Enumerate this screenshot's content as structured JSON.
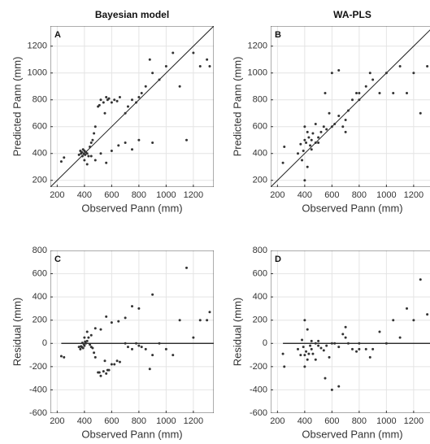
{
  "chart_data": [
    {
      "type": "scatter",
      "panel": "A",
      "title": "Bayesian model",
      "xlabel": "Observed Pann (mm)",
      "ylabel": "Predicted Pann (mm)",
      "color": "#333333",
      "xlim": [
        150,
        1350
      ],
      "xticks": [
        200,
        400,
        600,
        800,
        1000,
        1200
      ],
      "ylim": [
        150,
        1350
      ],
      "yticks": [
        200,
        400,
        600,
        800,
        1000,
        1200
      ],
      "grid": true,
      "identity_line": true,
      "x": [
        230,
        250,
        360,
        370,
        375,
        380,
        385,
        390,
        395,
        400,
        405,
        410,
        420,
        430,
        440,
        450,
        460,
        470,
        480,
        500,
        510,
        520,
        540,
        550,
        560,
        570,
        580,
        600,
        620,
        640,
        660,
        700,
        720,
        750,
        780,
        800,
        820,
        850,
        880,
        900,
        950,
        1000,
        1050,
        1100,
        1150,
        1200,
        1250,
        1300,
        1320,
        400,
        420,
        450,
        480,
        520,
        560,
        600,
        650,
        700,
        750,
        800,
        900
      ],
      "y": [
        340,
        370,
        390,
        420,
        400,
        410,
        380,
        430,
        400,
        420,
        390,
        410,
        400,
        380,
        450,
        480,
        500,
        550,
        600,
        750,
        760,
        800,
        780,
        700,
        820,
        800,
        810,
        780,
        800,
        790,
        820,
        700,
        750,
        800,
        780,
        820,
        850,
        900,
        1100,
        1000,
        950,
        1050,
        1150,
        900,
        500,
        1150,
        1050,
        1100,
        1050,
        350,
        320,
        380,
        350,
        400,
        330,
        420,
        460,
        480,
        430,
        500,
        480
      ]
    },
    {
      "type": "scatter",
      "panel": "B",
      "title": "WA-PLS",
      "xlabel": "Observed Pann (mm)",
      "ylabel": "Predicted Pann (mm)",
      "color": "#333333",
      "xlim": [
        150,
        1350
      ],
      "xticks": [
        200,
        400,
        600,
        800,
        1000,
        1200
      ],
      "ylim": [
        150,
        1350
      ],
      "yticks": [
        200,
        400,
        600,
        800,
        1000,
        1200
      ],
      "grid": true,
      "identity_line": true,
      "x": [
        240,
        250,
        350,
        370,
        380,
        390,
        400,
        400,
        410,
        420,
        430,
        440,
        450,
        460,
        480,
        500,
        520,
        540,
        560,
        580,
        600,
        620,
        650,
        680,
        700,
        720,
        750,
        780,
        800,
        850,
        880,
        900,
        950,
        1000,
        1050,
        1100,
        1150,
        1200,
        1250,
        1300,
        400,
        420,
        450,
        480,
        500,
        550,
        600,
        650,
        700,
        800
      ],
      "y": [
        330,
        450,
        400,
        470,
        350,
        420,
        200,
        500,
        480,
        300,
        520,
        460,
        500,
        550,
        480,
        520,
        560,
        600,
        580,
        700,
        600,
        620,
        680,
        600,
        650,
        720,
        800,
        850,
        800,
        900,
        1000,
        950,
        850,
        1000,
        850,
        1050,
        850,
        1000,
        700,
        1050,
        600,
        560,
        430,
        620,
        480,
        850,
        1000,
        1020,
        560,
        850
      ]
    },
    {
      "type": "scatter",
      "panel": "C",
      "xlabel": "Observed Pann (mm)",
      "ylabel": "Residual (mm)",
      "color": "#333333",
      "xlim": [
        150,
        1350
      ],
      "xticks": [
        200,
        400,
        600,
        800,
        1000,
        1200
      ],
      "ylim": [
        -600,
        800
      ],
      "yticks": [
        -600,
        -400,
        -200,
        0,
        200,
        400,
        600,
        800
      ],
      "grid": true,
      "reference_line": 0,
      "x": [
        230,
        250,
        360,
        370,
        375,
        380,
        385,
        390,
        395,
        400,
        405,
        410,
        420,
        430,
        440,
        450,
        460,
        470,
        480,
        500,
        510,
        520,
        540,
        550,
        560,
        570,
        580,
        600,
        620,
        640,
        660,
        700,
        720,
        750,
        780,
        800,
        820,
        850,
        880,
        900,
        950,
        1000,
        1050,
        1100,
        1150,
        1200,
        1250,
        1300,
        1320,
        400,
        420,
        450,
        480,
        520,
        560,
        600,
        650,
        700,
        750,
        800,
        900
      ],
      "y": [
        -110,
        -120,
        -30,
        -50,
        -25,
        -30,
        5,
        -40,
        -5,
        -20,
        15,
        0,
        20,
        50,
        -10,
        -30,
        -40,
        -80,
        -120,
        -250,
        -250,
        -280,
        -240,
        -150,
        -260,
        -230,
        -230,
        -180,
        -180,
        -150,
        -160,
        0,
        -30,
        -50,
        0,
        -20,
        -30,
        -50,
        -220,
        -100,
        0,
        -50,
        -100,
        200,
        650,
        50,
        200,
        200,
        270,
        50,
        100,
        70,
        130,
        120,
        230,
        180,
        190,
        220,
        320,
        300,
        420
      ]
    },
    {
      "type": "scatter",
      "panel": "D",
      "xlabel": "Observed Pann (mm)",
      "ylabel": "Residual (mm)",
      "color": "#333333",
      "xlim": [
        150,
        1350
      ],
      "xticks": [
        200,
        400,
        600,
        800,
        1000,
        1200
      ],
      "ylim": [
        -600,
        800
      ],
      "yticks": [
        -600,
        -400,
        -200,
        0,
        200,
        400,
        600,
        800
      ],
      "grid": true,
      "reference_line": 0,
      "x": [
        240,
        250,
        350,
        370,
        380,
        390,
        400,
        400,
        410,
        420,
        430,
        440,
        450,
        460,
        480,
        500,
        520,
        540,
        560,
        580,
        600,
        620,
        650,
        680,
        700,
        720,
        750,
        780,
        800,
        850,
        880,
        900,
        950,
        1000,
        1050,
        1100,
        1150,
        1200,
        1250,
        1300,
        400,
        420,
        450,
        480,
        500,
        550,
        600,
        650,
        700,
        800
      ],
      "y": [
        -90,
        -200,
        -50,
        -100,
        30,
        -30,
        200,
        -100,
        -70,
        120,
        -90,
        -20,
        -50,
        -90,
        0,
        -20,
        -40,
        -60,
        -20,
        -120,
        0,
        0,
        -30,
        80,
        50,
        0,
        -50,
        -70,
        0,
        -50,
        -120,
        -50,
        100,
        0,
        200,
        50,
        300,
        200,
        550,
        250,
        -200,
        -140,
        20,
        -140,
        20,
        -300,
        -400,
        -370,
        140,
        -50
      ]
    }
  ]
}
